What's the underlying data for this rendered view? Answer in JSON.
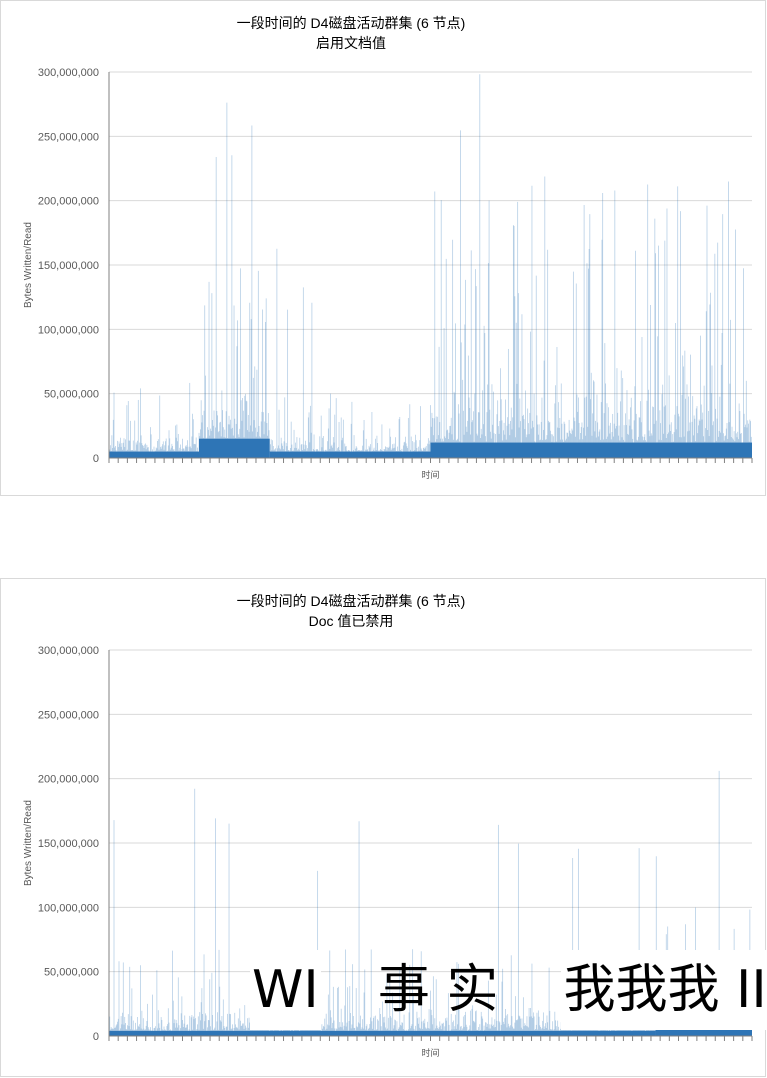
{
  "chart_data": [
    {
      "type": "area",
      "title": "一段时间的 D4磁盘活动群集 (6 节点)",
      "subtitle": "启用文档值",
      "xlabel": "时间",
      "ylabel": "Bytes Written/Read",
      "ylim": [
        0,
        300000000
      ],
      "yticks": [
        "0",
        "50,000,000",
        "100,000,000",
        "150,000,000",
        "200,000,000",
        "250,000,000",
        "300,000,000"
      ],
      "grid": true,
      "colors": {
        "series": "#2e75b6",
        "grid": "#d9d9d9",
        "axis": "#808080"
      },
      "segments": [
        {
          "x_start": 0.0,
          "x_end": 0.14,
          "baseline": 5000000,
          "typical_peak": 30000000,
          "max_peak": 75000000
        },
        {
          "x_start": 0.14,
          "x_end": 0.25,
          "baseline": 15000000,
          "typical_peak": 100000000,
          "max_peak": 300000000
        },
        {
          "x_start": 0.25,
          "x_end": 0.5,
          "baseline": 5000000,
          "typical_peak": 30000000,
          "max_peak": 170000000
        },
        {
          "x_start": 0.5,
          "x_end": 1.0,
          "baseline": 12000000,
          "typical_peak": 130000000,
          "max_peak": 300000000
        }
      ]
    },
    {
      "type": "area",
      "title": "一段时间的 D4磁盘活动群集 (6 节点)",
      "subtitle": "Doc 值已禁用",
      "xlabel": "时间",
      "ylabel": "Bytes Written/Read",
      "ylim": [
        0,
        300000000
      ],
      "yticks": [
        "0",
        "50,000,000",
        "100,000,000",
        "150,000,000",
        "200,000,000",
        "250,000,000",
        "300,000,000"
      ],
      "grid": true,
      "colors": {
        "series": "#2e75b6",
        "grid": "#d9d9d9",
        "axis": "#808080"
      },
      "segments": [
        {
          "x_start": 0.0,
          "x_end": 0.85,
          "baseline": 4000000,
          "typical_peak": 40000000,
          "max_peak": 210000000
        },
        {
          "x_start": 0.85,
          "x_end": 1.0,
          "baseline": 6000000,
          "typical_peak": 60000000,
          "max_peak": 210000000
        }
      ]
    }
  ],
  "overlay_text": {
    "part1": "WI",
    "part2": "事",
    "part3": "实",
    "part4": "我我我 II"
  }
}
